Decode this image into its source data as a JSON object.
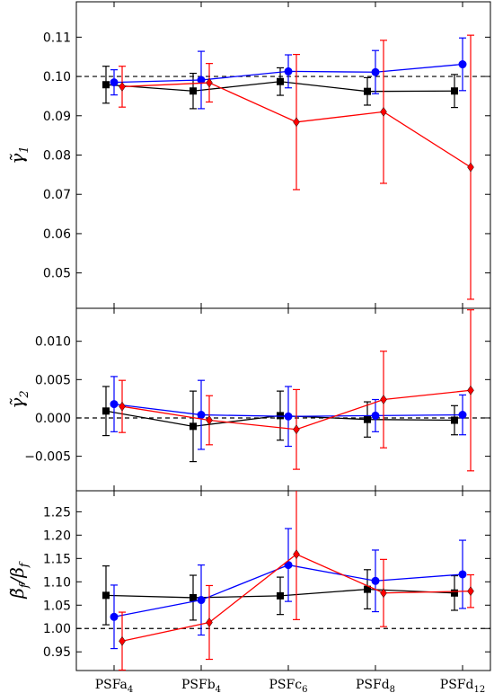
{
  "chart_data": [
    {
      "type": "line",
      "ylabel": "γ̃1",
      "ylabel_main": "γ̃",
      "ylabel_sub": "1",
      "categories": [
        "PSFa4",
        "PSFb4",
        "PSFc6",
        "PSFd8",
        "PSFd12"
      ],
      "ylim": [
        0.041,
        0.119
      ],
      "yticks": [
        0.05,
        0.06,
        0.07,
        0.08,
        0.09,
        0.1,
        0.11
      ],
      "ytick_labels": [
        "0.05",
        "0.06",
        "0.07",
        "0.08",
        "0.09",
        "0.10",
        "0.11"
      ],
      "reference_line": 0.1,
      "grid": false,
      "series": [
        {
          "color": "#000000",
          "marker": "square",
          "offset": -1,
          "values": [
            0.0979,
            0.0963,
            0.0987,
            0.0962,
            0.0963
          ],
          "err": [
            0.0047,
            0.0045,
            0.0035,
            0.0035,
            0.0042
          ]
        },
        {
          "color": "#0000ff",
          "marker": "circle",
          "offset": 0,
          "values": [
            0.0985,
            0.0991,
            0.1013,
            0.1011,
            0.1031
          ],
          "err": [
            0.0032,
            0.0073,
            0.0042,
            0.0055,
            0.0067
          ]
        },
        {
          "color": "#ff0000",
          "marker": "diamond",
          "offset": 1,
          "values": [
            0.0974,
            0.0984,
            0.0884,
            0.091,
            0.0769
          ],
          "err": [
            0.0052,
            0.0049,
            0.0172,
            0.0182,
            0.0336
          ]
        }
      ]
    },
    {
      "type": "line",
      "ylabel": "γ̃2",
      "ylabel_main": "γ̃",
      "ylabel_sub": "2",
      "categories": [
        "PSFa4",
        "PSFb4",
        "PSFc6",
        "PSFd8",
        "PSFd12"
      ],
      "ylim": [
        -0.0095,
        0.0143
      ],
      "yticks": [
        -0.005,
        0.0,
        0.005,
        0.01
      ],
      "ytick_labels": [
        "−0.005",
        "0.000",
        "0.005",
        "0.010"
      ],
      "reference_line": 0.0,
      "grid": false,
      "series": [
        {
          "color": "#000000",
          "marker": "square",
          "offset": -1,
          "values": [
            0.0009,
            -0.0011,
            0.0003,
            -0.0002,
            -0.0003
          ],
          "err": [
            0.0032,
            0.0046,
            0.0032,
            0.0023,
            0.0019
          ]
        },
        {
          "color": "#0000ff",
          "marker": "circle",
          "offset": 0,
          "values": [
            0.0018,
            0.0004,
            0.0002,
            0.0003,
            0.0004
          ],
          "err": [
            0.0036,
            0.0045,
            0.0039,
            0.0021,
            0.0026
          ]
        },
        {
          "color": "#ff0000",
          "marker": "diamond",
          "offset": 1,
          "values": [
            0.0015,
            -0.0003,
            -0.0015,
            0.0024,
            0.0036
          ],
          "err": [
            0.0034,
            0.0032,
            0.0052,
            0.0063,
            0.0105
          ]
        }
      ]
    },
    {
      "type": "line",
      "ylabel": "β̃f/βf",
      "ylabel_main": "β̃",
      "ylabel_sub": "f",
      "ylabel_tail": "/β",
      "ylabel_tail_sub": "f",
      "categories": [
        "PSFa4",
        "PSFb4",
        "PSFc6",
        "PSFd8",
        "PSFd12"
      ],
      "ylim": [
        0.91,
        1.295
      ],
      "yticks": [
        0.95,
        1.0,
        1.05,
        1.1,
        1.15,
        1.2,
        1.25
      ],
      "ytick_labels": [
        "0.95",
        "1.00",
        "1.05",
        "1.10",
        "1.15",
        "1.20",
        "1.25"
      ],
      "reference_line": 1.0,
      "grid": false,
      "series": [
        {
          "color": "#000000",
          "marker": "square",
          "offset": -1,
          "values": [
            1.071,
            1.066,
            1.07,
            1.084,
            1.076
          ],
          "err": [
            0.063,
            0.048,
            0.04,
            0.042,
            0.037
          ]
        },
        {
          "color": "#0000ff",
          "marker": "circle",
          "offset": 0,
          "values": [
            1.025,
            1.061,
            1.136,
            1.102,
            1.116
          ],
          "err": [
            0.068,
            0.075,
            0.078,
            0.066,
            0.073
          ]
        },
        {
          "color": "#ff0000",
          "marker": "diamond",
          "offset": 1,
          "values": [
            0.973,
            1.013,
            1.159,
            1.076,
            1.08
          ],
          "err": [
            0.062,
            0.079,
            0.14,
            0.072,
            0.035
          ]
        }
      ]
    }
  ],
  "x_axis": {
    "labels": [
      {
        "main": "PSFa",
        "sub": "4"
      },
      {
        "main": "PSFb",
        "sub": "4"
      },
      {
        "main": "PSFc",
        "sub": "6"
      },
      {
        "main": "PSFd",
        "sub": "8"
      },
      {
        "main": "PSFd",
        "sub": "12"
      }
    ]
  }
}
